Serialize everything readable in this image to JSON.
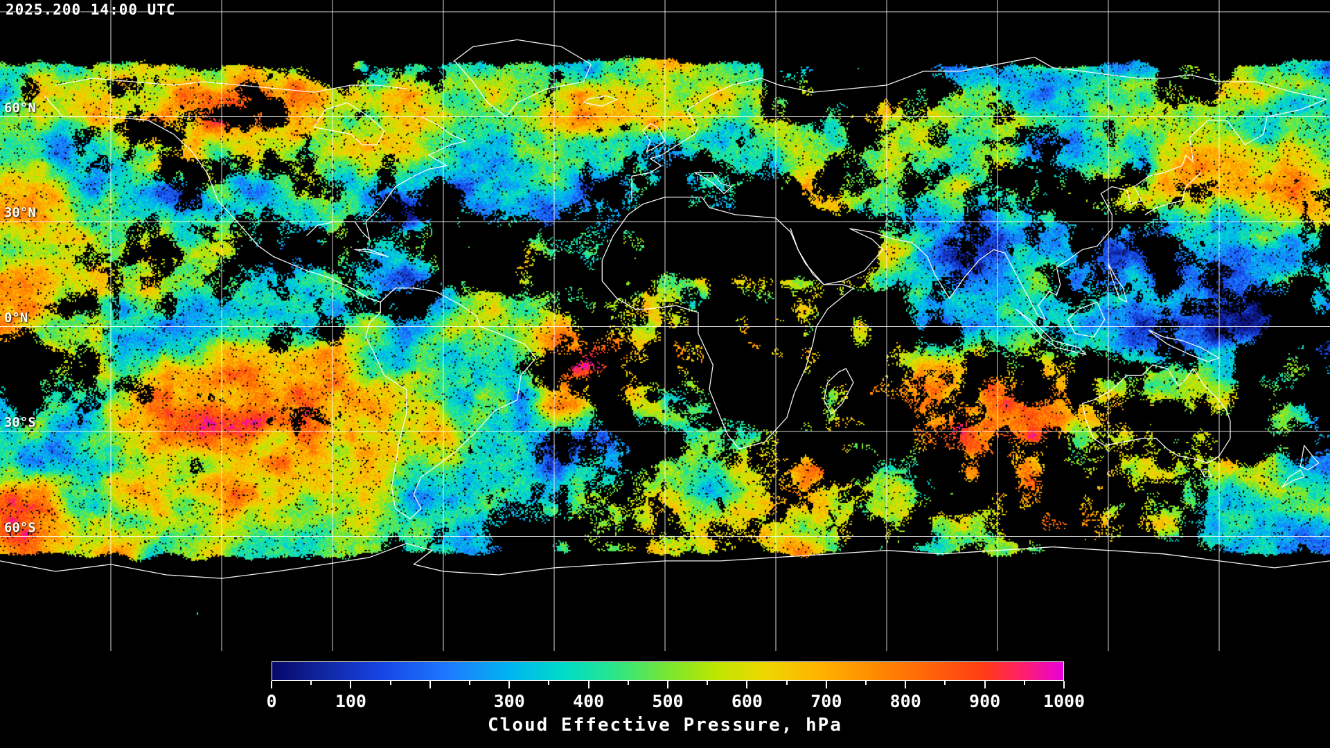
{
  "header": {
    "timestamp": "2025.200 14:00 UTC"
  },
  "map": {
    "projection": "equirectangular",
    "background_color": "#000000",
    "grid_color": "#ffffff",
    "coastline_color": "#ffffff",
    "grid": {
      "lon_step_deg": 30,
      "lat_step_deg": 30,
      "lons": [
        -150,
        -120,
        -90,
        -60,
        -30,
        0,
        30,
        60,
        90,
        120,
        150
      ],
      "lats": [
        90,
        60,
        30,
        0,
        -30,
        -60
      ]
    },
    "latitude_labels": [
      {
        "text": "60°N",
        "lat": 60
      },
      {
        "text": "30°N",
        "lat": 30
      },
      {
        "text": "0°N",
        "lat": 0
      },
      {
        "text": "30°S",
        "lat": -30
      },
      {
        "text": "60°S",
        "lat": -60
      }
    ]
  },
  "colorbar": {
    "title": "Cloud Effective Pressure, hPa",
    "quantity": "Cloud Effective Pressure",
    "units": "hPa",
    "min": 0,
    "max": 1000,
    "tick_values": [
      0,
      100,
      300,
      400,
      500,
      600,
      700,
      800,
      900,
      1000
    ],
    "tick_labels": [
      "0",
      "100",
      "300",
      "400",
      "500",
      "600",
      "700",
      "800",
      "900",
      "1000"
    ],
    "minor_tick_step": 50,
    "stops": [
      {
        "v": 0,
        "color": "#08086a"
      },
      {
        "v": 60,
        "color": "#10249c"
      },
      {
        "v": 140,
        "color": "#1646e6"
      },
      {
        "v": 220,
        "color": "#1e78ff"
      },
      {
        "v": 300,
        "color": "#00b4f0"
      },
      {
        "v": 370,
        "color": "#00dcc8"
      },
      {
        "v": 430,
        "color": "#28e68c"
      },
      {
        "v": 500,
        "color": "#78e632"
      },
      {
        "v": 560,
        "color": "#bce600"
      },
      {
        "v": 620,
        "color": "#ecd800"
      },
      {
        "v": 690,
        "color": "#ffb400"
      },
      {
        "v": 760,
        "color": "#ff8c00"
      },
      {
        "v": 830,
        "color": "#ff640a"
      },
      {
        "v": 900,
        "color": "#ff3c14"
      },
      {
        "v": 950,
        "color": "#ff1e6e"
      },
      {
        "v": 1000,
        "color": "#e600dc"
      }
    ]
  }
}
